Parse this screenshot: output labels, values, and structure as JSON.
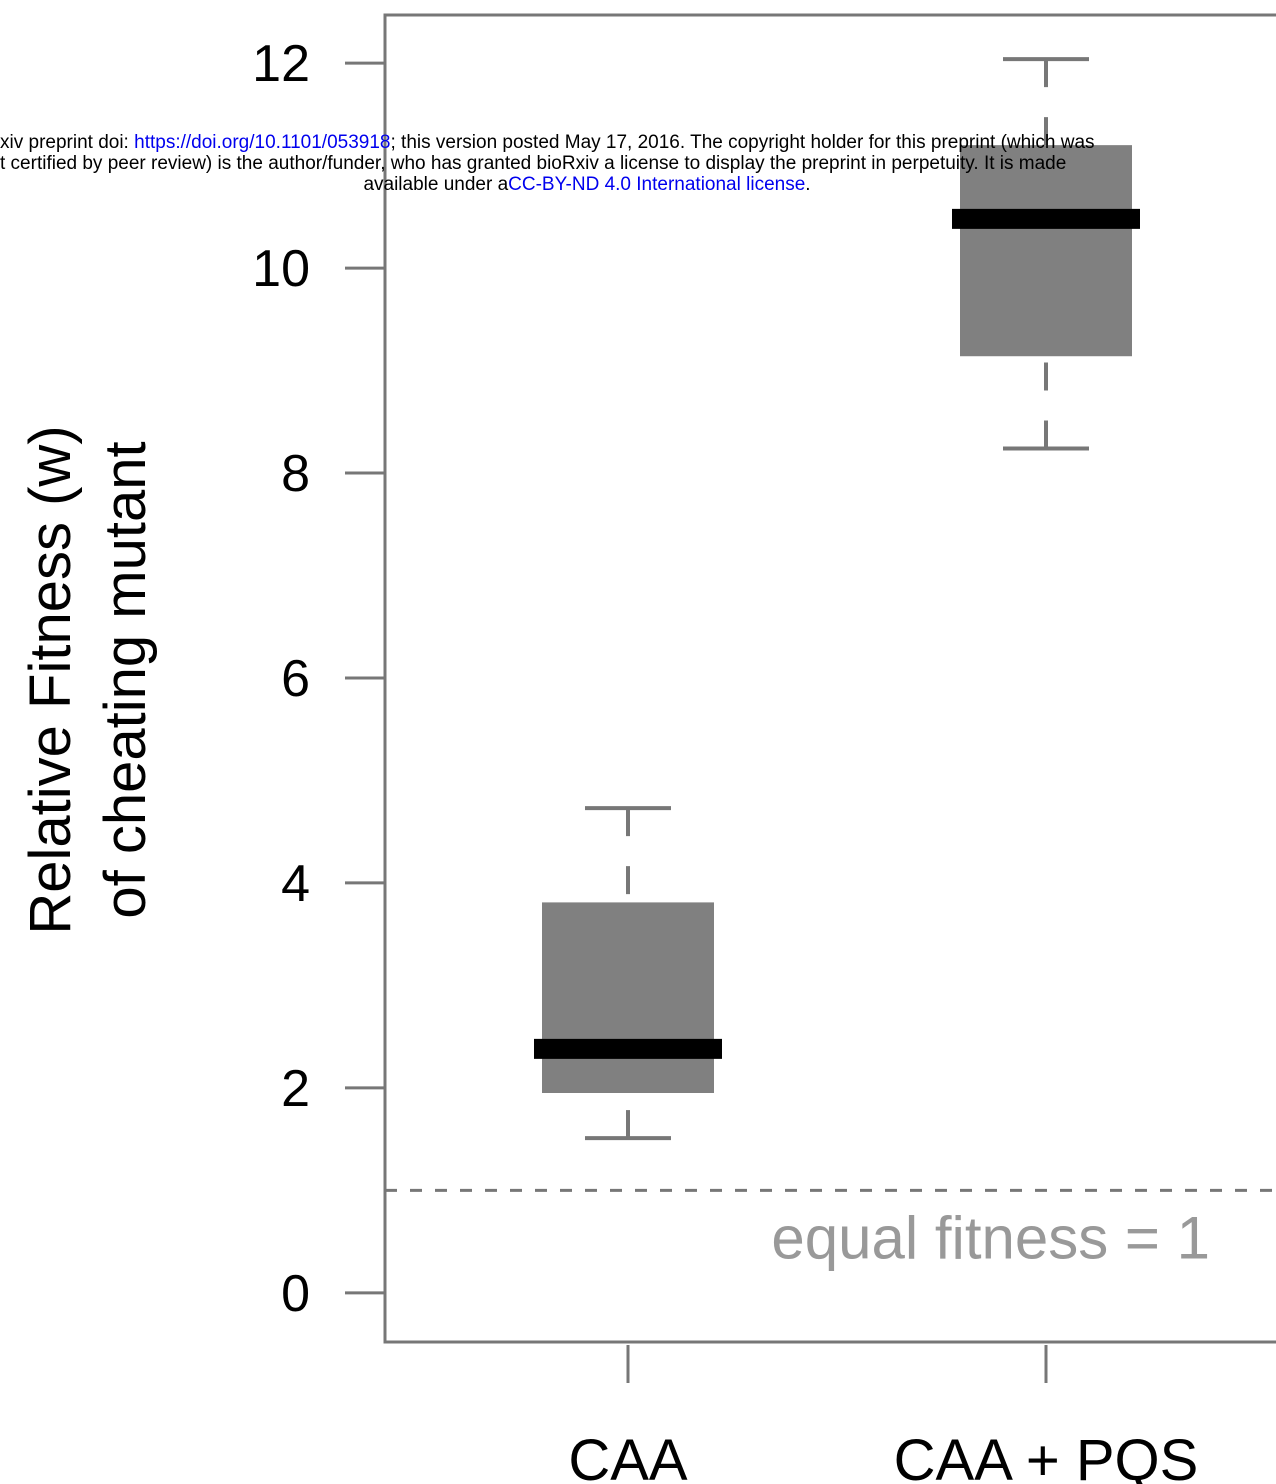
{
  "header": {
    "lines": [
      [
        "xiv preprint doi: ",
        "https://doi.org/10.1101/053918",
        "; this version posted May 17, 2016. The copyright holder for this preprint (which was"
      ],
      [
        "t certified by peer review) is the author/funder, who has granted bioRxiv a license to display the preprint in perpetuity. It is made"
      ],
      [
        "available under a",
        "CC-BY-ND 4.0 International license",
        "."
      ]
    ]
  },
  "chart_data": {
    "type": "box",
    "ylabel": [
      "Relative Fitness (w)",
      "of cheating mutant"
    ],
    "categories": [
      "CAA",
      "CAA + PQS"
    ],
    "stats": [
      {
        "min": 1.51,
        "q1": 1.95,
        "median": 2.38,
        "q3": 3.81,
        "max": 4.73
      },
      {
        "min": 8.24,
        "q1": 9.14,
        "median": 10.48,
        "q3": 11.2,
        "max": 12.04
      }
    ],
    "color": "#808080",
    "median_color": "#000000",
    "ylim": [
      -0.48,
      12.47
    ],
    "yticks": [
      0,
      2,
      4,
      6,
      8,
      10,
      12
    ],
    "reference_line": 1,
    "annotation": "equal fitness = 1"
  }
}
